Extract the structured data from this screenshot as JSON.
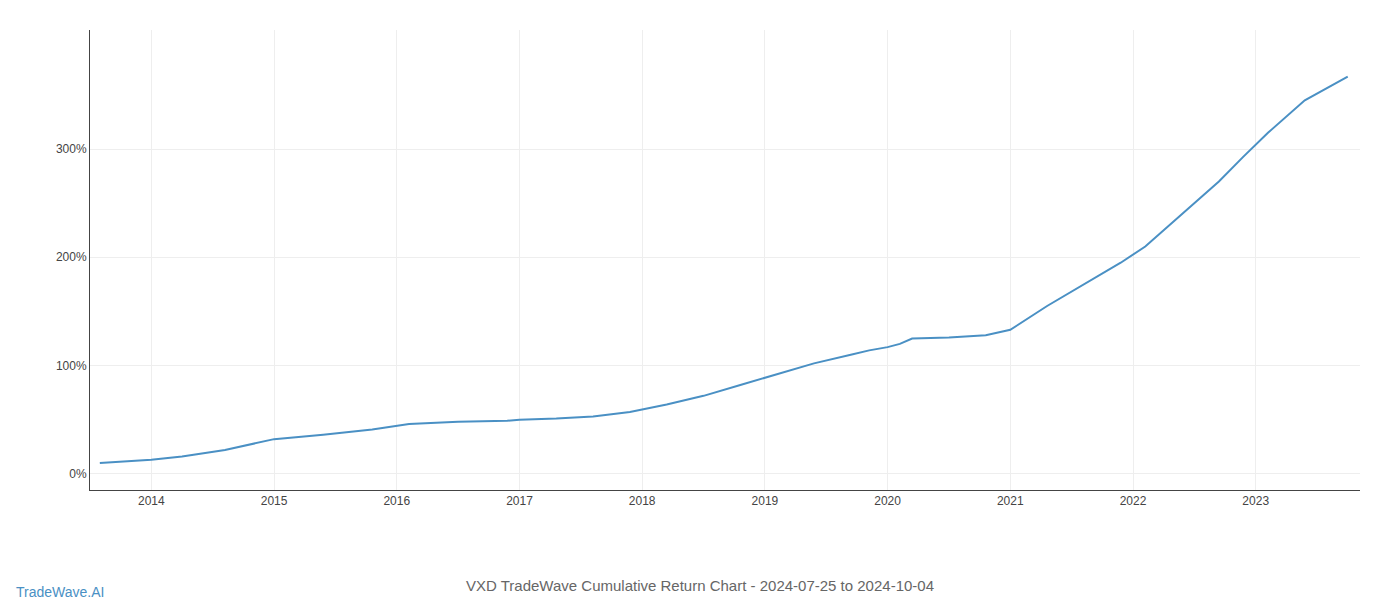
{
  "chart_data": {
    "type": "line",
    "title": "VXD TradeWave Cumulative Return Chart - 2024-07-25 to 2024-10-04",
    "annotations": [
      "TradeWave.AI"
    ],
    "x": [
      2013.58,
      2014.0,
      2014.25,
      2014.6,
      2015.0,
      2015.4,
      2015.8,
      2016.1,
      2016.5,
      2016.9,
      2017.0,
      2017.3,
      2017.6,
      2017.9,
      2018.2,
      2018.5,
      2018.8,
      2019.1,
      2019.4,
      2019.7,
      2019.85,
      2020.0,
      2020.1,
      2020.2,
      2020.5,
      2020.8,
      2021.0,
      2021.3,
      2021.6,
      2021.9,
      2022.1,
      2022.4,
      2022.7,
      2022.9,
      2023.1,
      2023.4,
      2023.75
    ],
    "values": [
      10,
      13,
      16,
      22,
      32,
      36,
      41,
      46,
      48,
      49,
      50,
      51,
      53,
      57,
      64,
      72,
      82,
      92,
      102,
      110,
      114,
      117,
      120,
      125,
      126,
      128,
      133,
      155,
      175,
      195,
      210,
      240,
      270,
      293,
      315,
      345,
      367
    ],
    "color": "#4a90c4",
    "xlim": [
      2013.5,
      2023.85
    ],
    "xticks": [
      2014,
      2015,
      2016,
      2017,
      2018,
      2019,
      2020,
      2021,
      2022,
      2023
    ],
    "ylim": [
      -15,
      410
    ],
    "yticks": [
      {
        "value": 0,
        "label": "0%"
      },
      {
        "value": 100,
        "label": "100%"
      },
      {
        "value": 200,
        "label": "200%"
      },
      {
        "value": 300,
        "label": "300%"
      }
    ],
    "grid": true
  }
}
